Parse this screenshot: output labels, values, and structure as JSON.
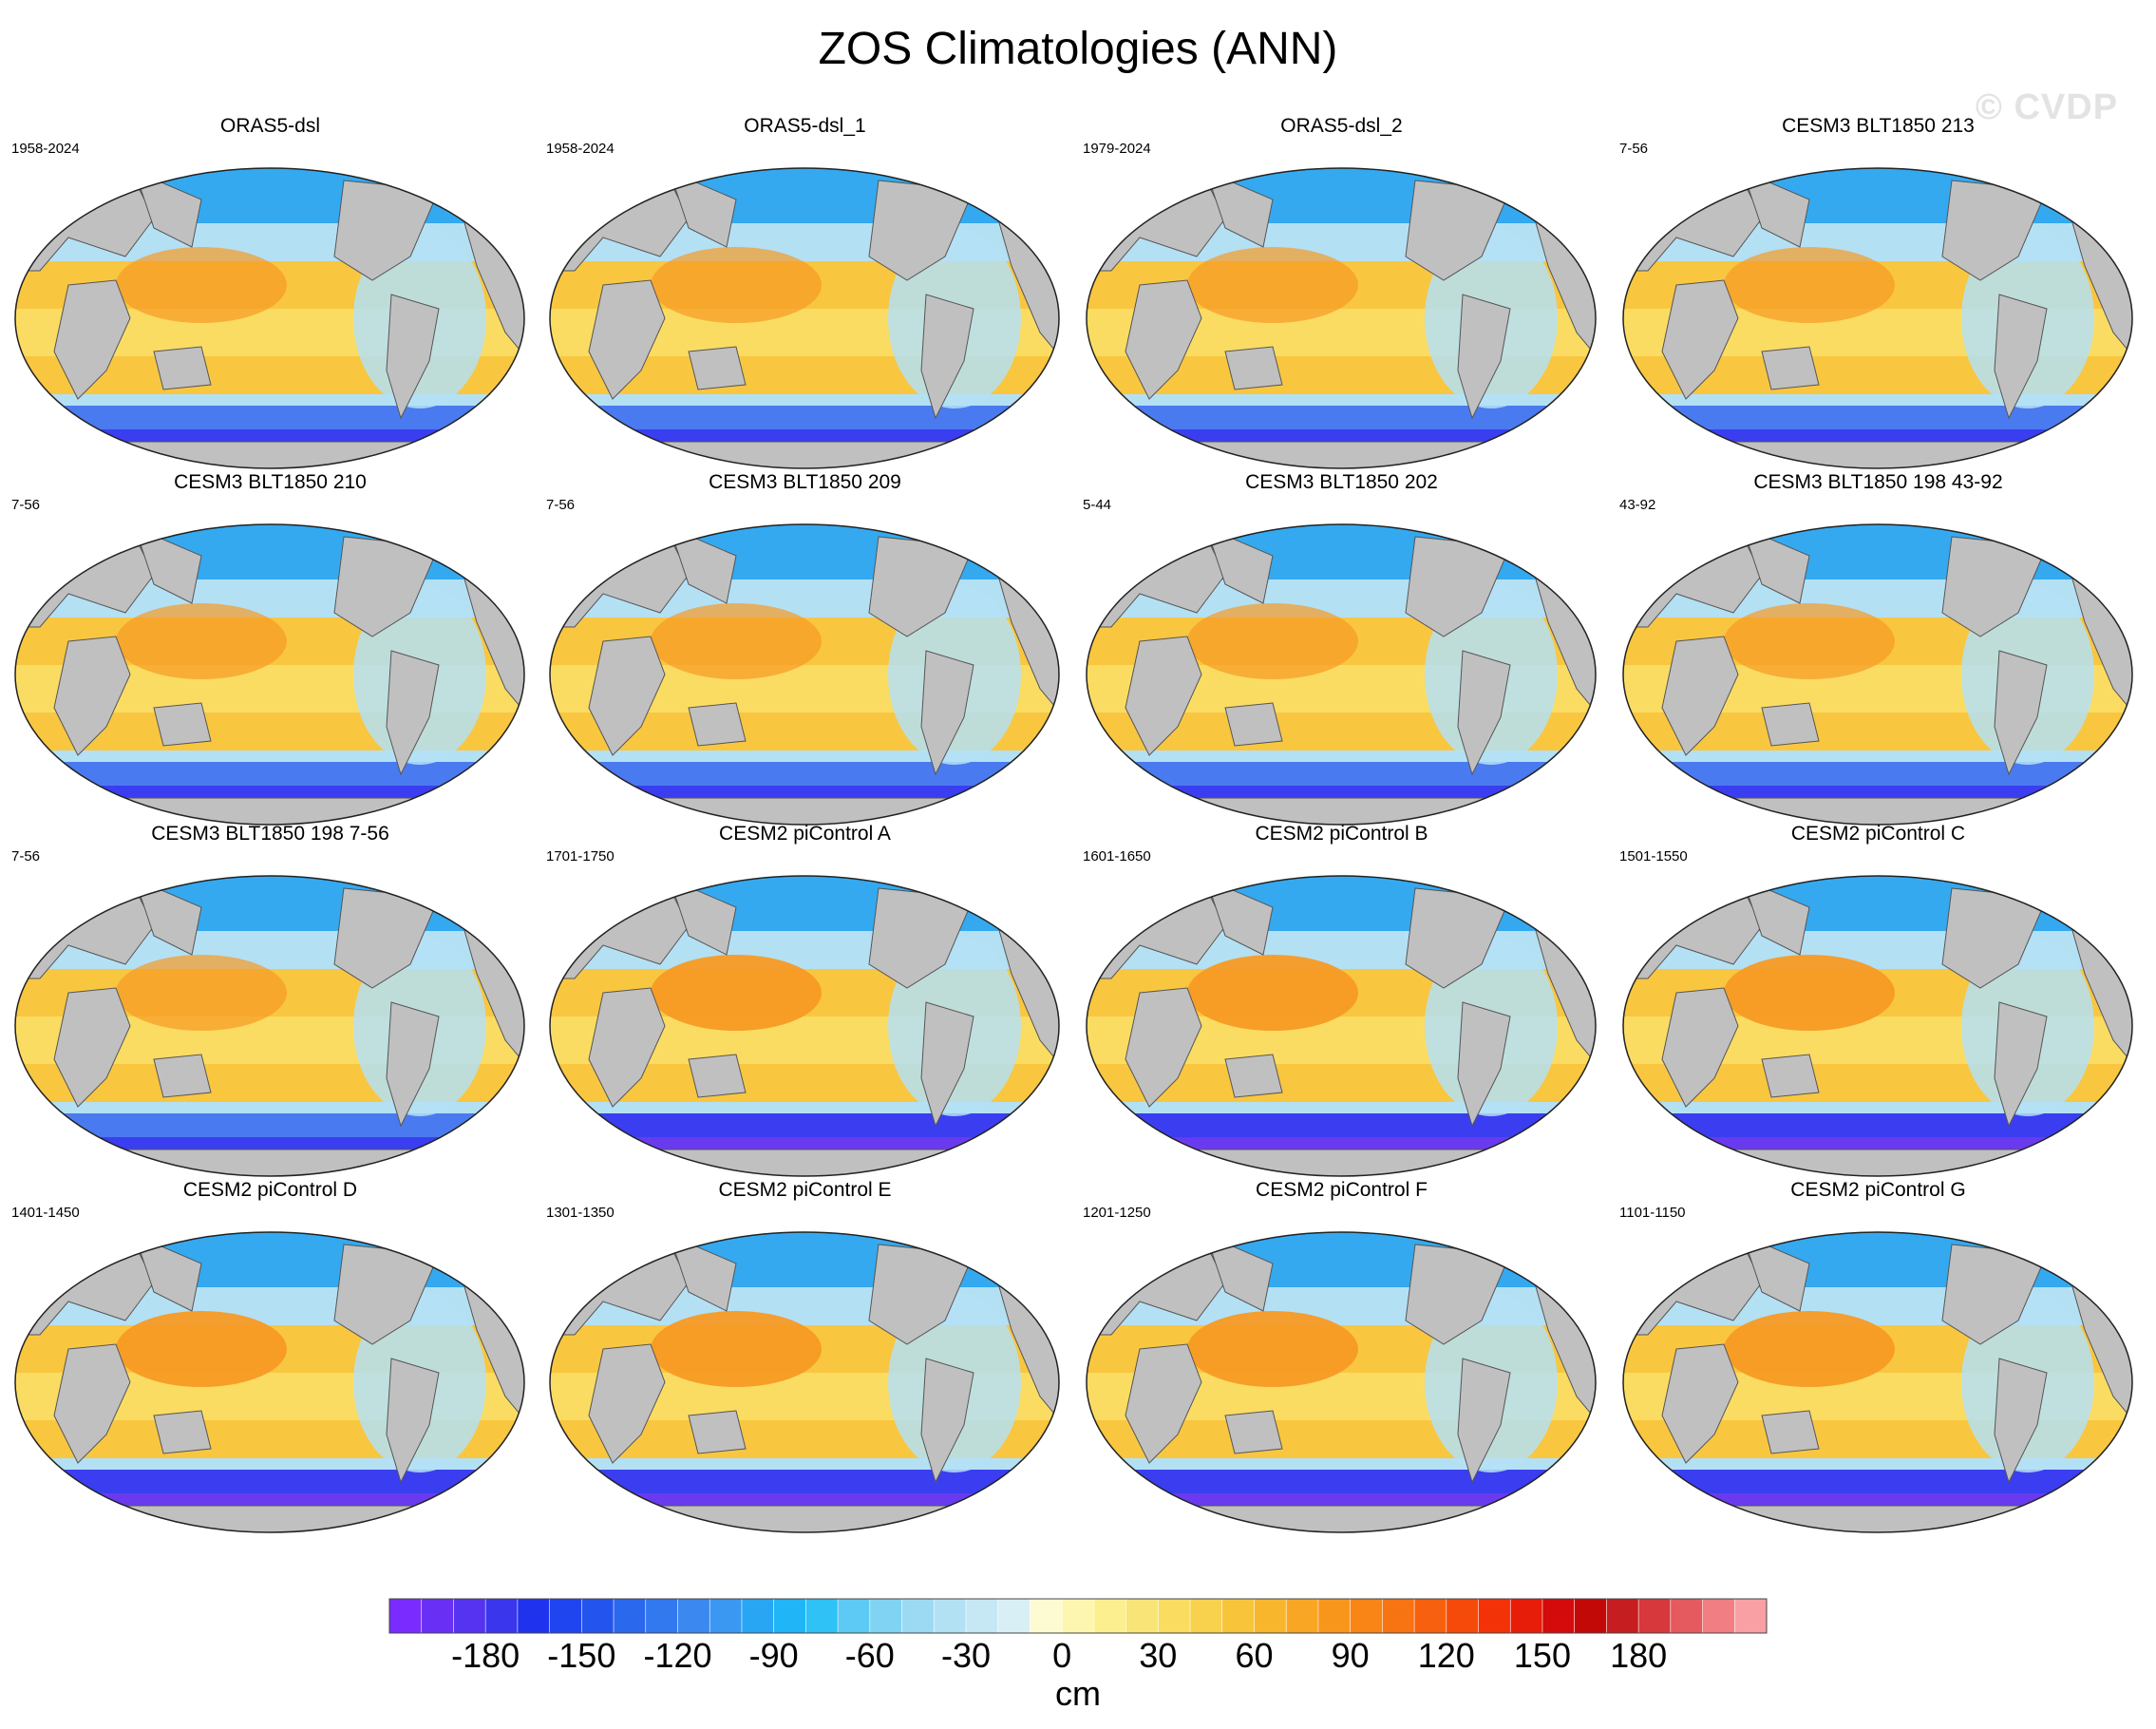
{
  "title": "ZOS Climatologies (ANN)",
  "watermark": "© CVDP",
  "panels": [
    {
      "title": "ORAS5-dsl",
      "years": "1958-2024",
      "scheme": "obs"
    },
    {
      "title": "ORAS5-dsl_1",
      "years": "1958-2024",
      "scheme": "obs"
    },
    {
      "title": "ORAS5-dsl_2",
      "years": "1979-2024",
      "scheme": "obs"
    },
    {
      "title": "CESM3 BLT1850 213",
      "years": "7-56",
      "scheme": "cesm3"
    },
    {
      "title": "CESM3 BLT1850 210",
      "years": "7-56",
      "scheme": "cesm3"
    },
    {
      "title": "CESM3 BLT1850 209",
      "years": "7-56",
      "scheme": "cesm3"
    },
    {
      "title": "CESM3 BLT1850 202",
      "years": "5-44",
      "scheme": "cesm3"
    },
    {
      "title": "CESM3 BLT1850 198 43-92",
      "years": "43-92",
      "scheme": "cesm3"
    },
    {
      "title": "CESM3 BLT1850 198 7-56",
      "years": "7-56",
      "scheme": "cesm3"
    },
    {
      "title": "CESM2 piControl A",
      "years": "1701-1750",
      "scheme": "cesm2"
    },
    {
      "title": "CESM2 piControl B",
      "years": "1601-1650",
      "scheme": "cesm2"
    },
    {
      "title": "CESM2 piControl C",
      "years": "1501-1550",
      "scheme": "cesm2"
    },
    {
      "title": "CESM2 piControl D",
      "years": "1401-1450",
      "scheme": "cesm2"
    },
    {
      "title": "CESM2 piControl E",
      "years": "1301-1350",
      "scheme": "cesm2"
    },
    {
      "title": "CESM2 piControl F",
      "years": "1201-1250",
      "scheme": "cesm2"
    },
    {
      "title": "CESM2 piControl G",
      "years": "1101-1150",
      "scheme": "cesm2"
    }
  ],
  "colorbar": {
    "unit": "cm",
    "tick_labels": [
      "-180",
      "-150",
      "-120",
      "-90",
      "-60",
      "-30",
      "0",
      "30",
      "60",
      "90",
      "120",
      "150",
      "180"
    ],
    "colors": [
      "#7a2bff",
      "#6a2ff5",
      "#5533f0",
      "#3a36ee",
      "#1f33ee",
      "#1f45f0",
      "#2355ee",
      "#2a68ee",
      "#3278ef",
      "#3a88f0",
      "#3a98f2",
      "#28a6f4",
      "#20b5f6",
      "#2ec2f6",
      "#5ccaf4",
      "#80d3f2",
      "#9cdaf3",
      "#b2e1f4",
      "#c6e8f5",
      "#d8eff6",
      "#fdfbd2",
      "#fcf6b0",
      "#fbef90",
      "#f9e577",
      "#f9dc60",
      "#f8d14d",
      "#f8c43a",
      "#f8b62d",
      "#f8a623",
      "#f8961c",
      "#f88516",
      "#f87312",
      "#f7600e",
      "#f64a0b",
      "#f33208",
      "#e71d0a",
      "#d50a0a",
      "#c30808",
      "#c61d20",
      "#d6383c",
      "#e45a5e",
      "#f07e82",
      "#f8a0a4"
    ],
    "fill_color": "#c3c3c3",
    "land_color": "#c0c0c0",
    "ocean_colors": {
      "deep_south": "#3a3ef0",
      "south": "#4a7aef",
      "antarctic_violet": "#6a3aef",
      "north_atlantic": "#b4e0f4",
      "arctic": "#34a9f0",
      "warm_pool": "#f79a24",
      "subtropics": "#f9c640",
      "tropics": "#fbdc63"
    }
  }
}
